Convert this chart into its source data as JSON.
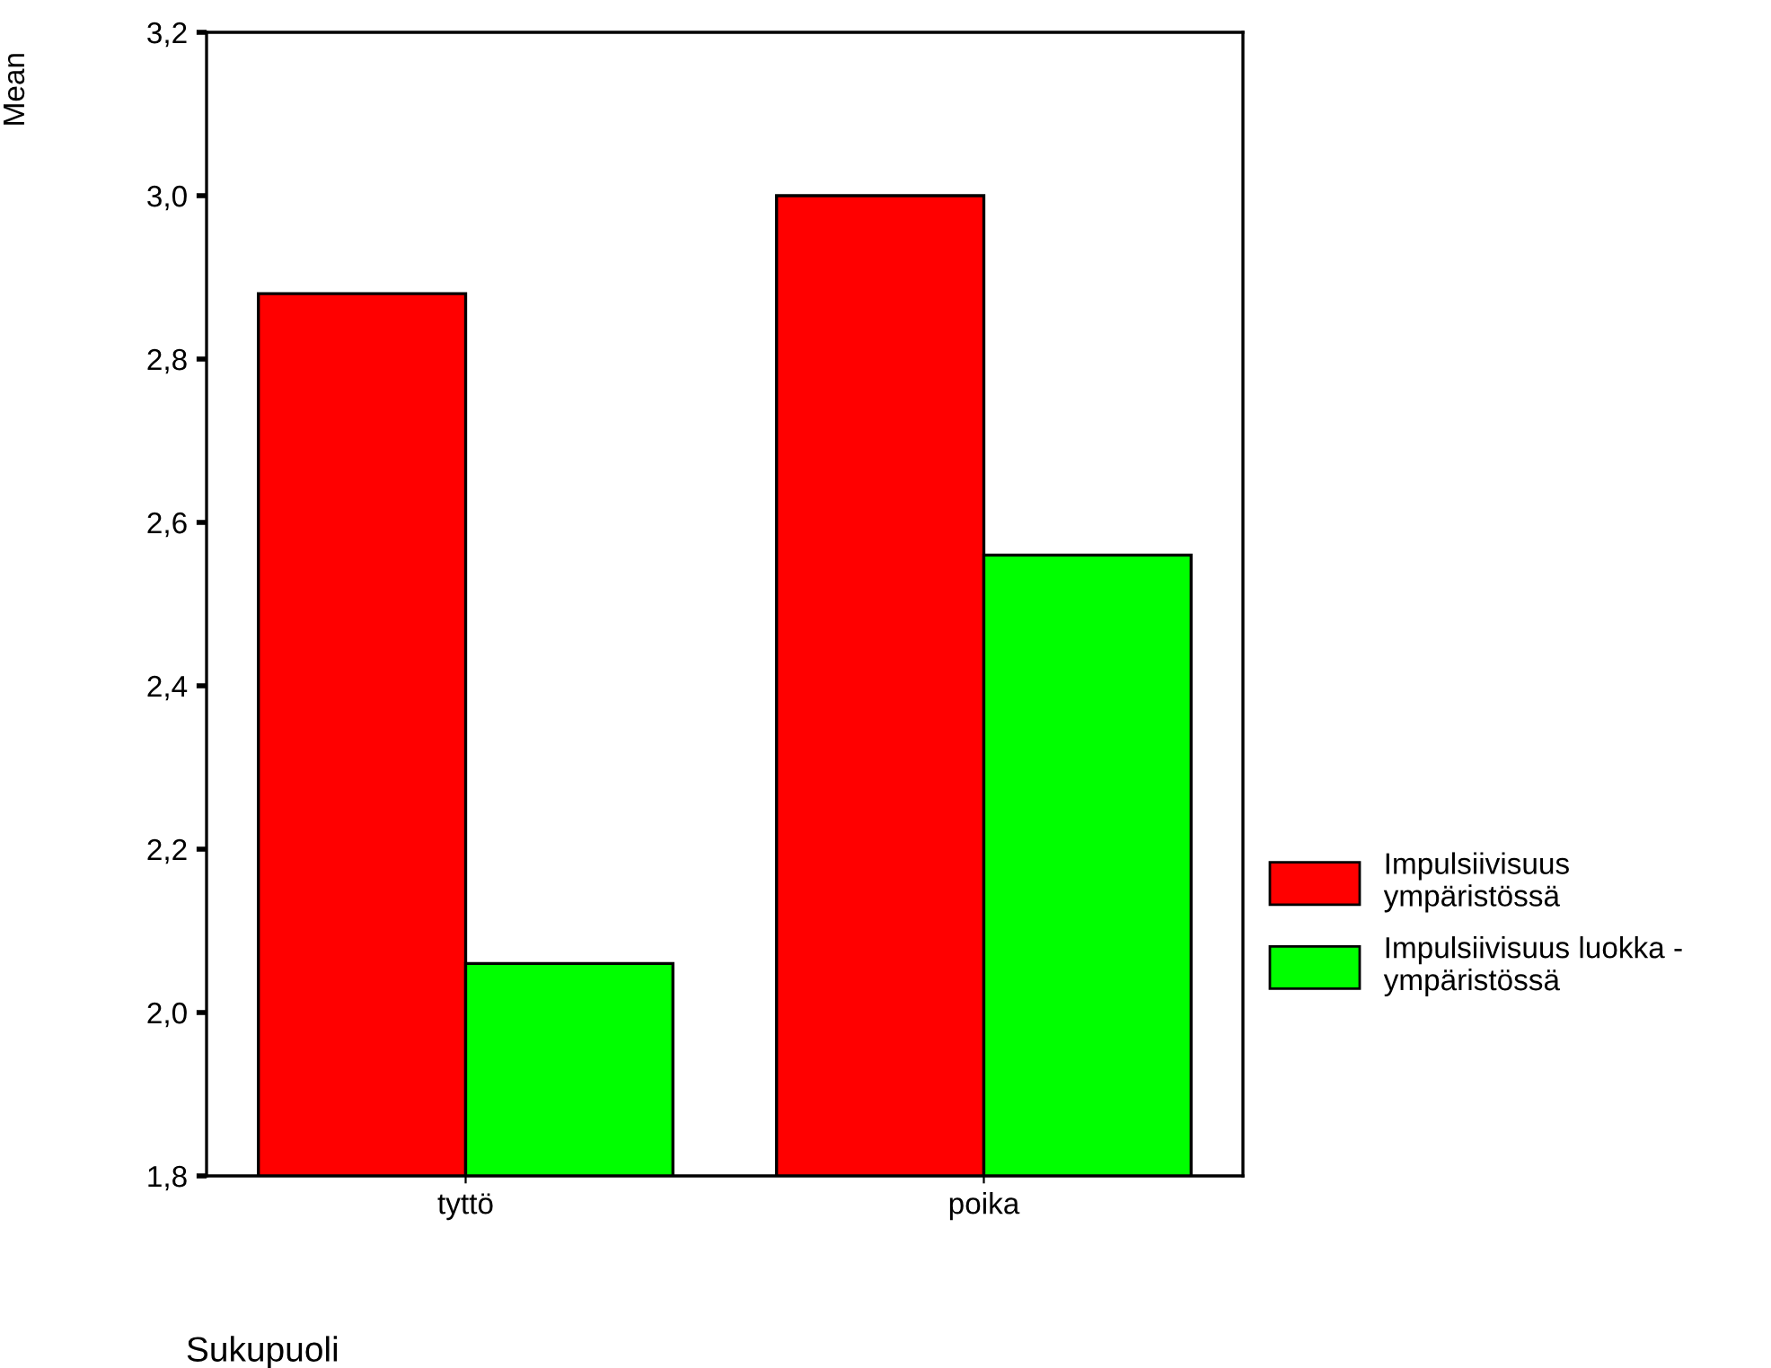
{
  "chart_data": {
    "type": "bar",
    "xlabel": "Sukupuoli",
    "ylabel": "Mean",
    "categories": [
      "tyttö",
      "poika"
    ],
    "series": [
      {
        "name": "Impulsiivisuus ympäristössä",
        "color": "#ff0000",
        "values": [
          2.88,
          3.0
        ]
      },
      {
        "name": "Impulsiivisuus luokka - ympäristössä",
        "color": "#00ff00",
        "values": [
          2.06,
          2.56
        ]
      }
    ],
    "ylim": [
      1.8,
      3.2
    ],
    "yticks": [
      {
        "value": 1.8,
        "label": "1,8"
      },
      {
        "value": 2.0,
        "label": "2,0"
      },
      {
        "value": 2.2,
        "label": "2,2"
      },
      {
        "value": 2.4,
        "label": "2,4"
      },
      {
        "value": 2.6,
        "label": "2,6"
      },
      {
        "value": 2.8,
        "label": "2,8"
      },
      {
        "value": 3.0,
        "label": "3,0"
      },
      {
        "value": 3.2,
        "label": "3,2"
      }
    ],
    "grid": false,
    "legend": "right"
  }
}
